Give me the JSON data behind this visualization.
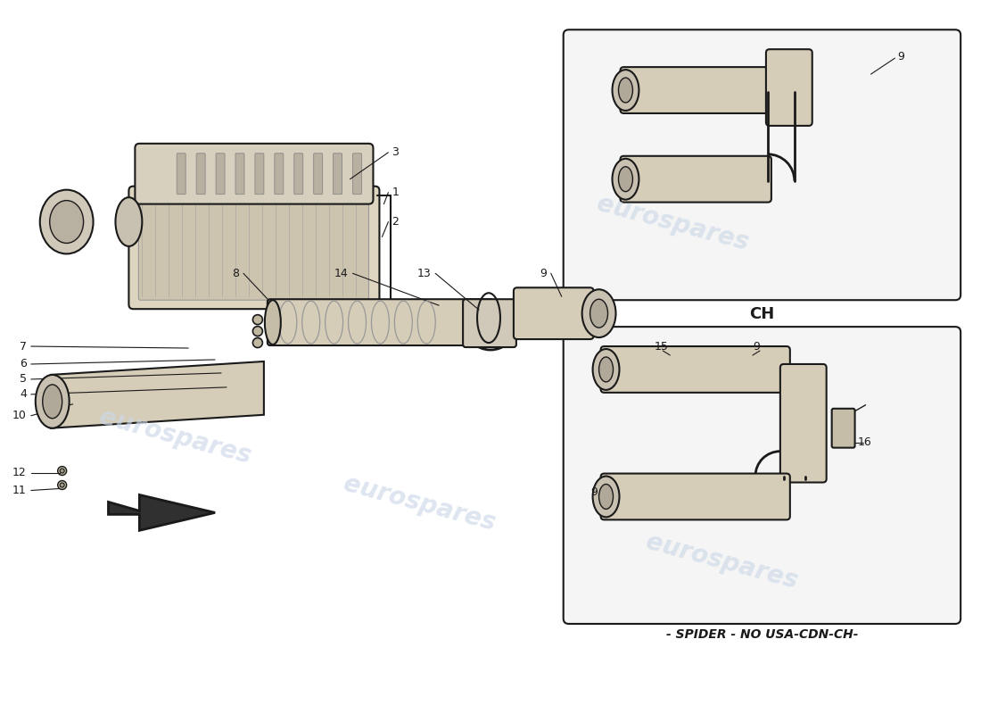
{
  "bg_color": "#ffffff",
  "line_color": "#1a1a1a",
  "part_fill": "#ddd5c0",
  "part_fill2": "#c8bfa8",
  "box_fill": "#f5f5f5",
  "watermark_color": "#ccd8e8",
  "ch_label": "CH",
  "spider_label": "- SPIDER - NO USA-CDN-CH-",
  "watermark_text": "eurospares",
  "fig_w": 11.0,
  "fig_h": 8.0
}
